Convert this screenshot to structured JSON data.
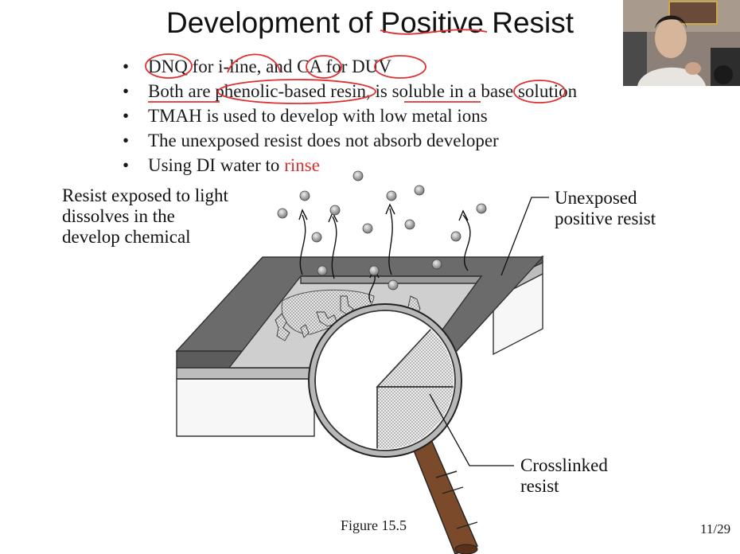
{
  "slide": {
    "title": "Development of Positive Resist",
    "bullets": [
      "DNQ for i-line, and CA for DUV",
      "Both are phenolic-based resin, is soluble in a base solution",
      "TMAH is used to develop with low metal ions",
      "The unexposed resist does not absorb developer",
      "Using DI water to rinse"
    ],
    "bullet5_prefix": "Using DI water to ",
    "bullet5_highlight": "rinse",
    "highlight_color": "#e03030",
    "annotation_color": "#e03030"
  },
  "figure": {
    "label_exposed": "Resist exposed to light\ndissolves in the\ndevelop chemical",
    "label_unexposed": "Unexposed\npositive resist",
    "label_crosslinked": "Crosslinked\nresist",
    "caption": "Figure 15.5"
  },
  "page_number": "11/29"
}
